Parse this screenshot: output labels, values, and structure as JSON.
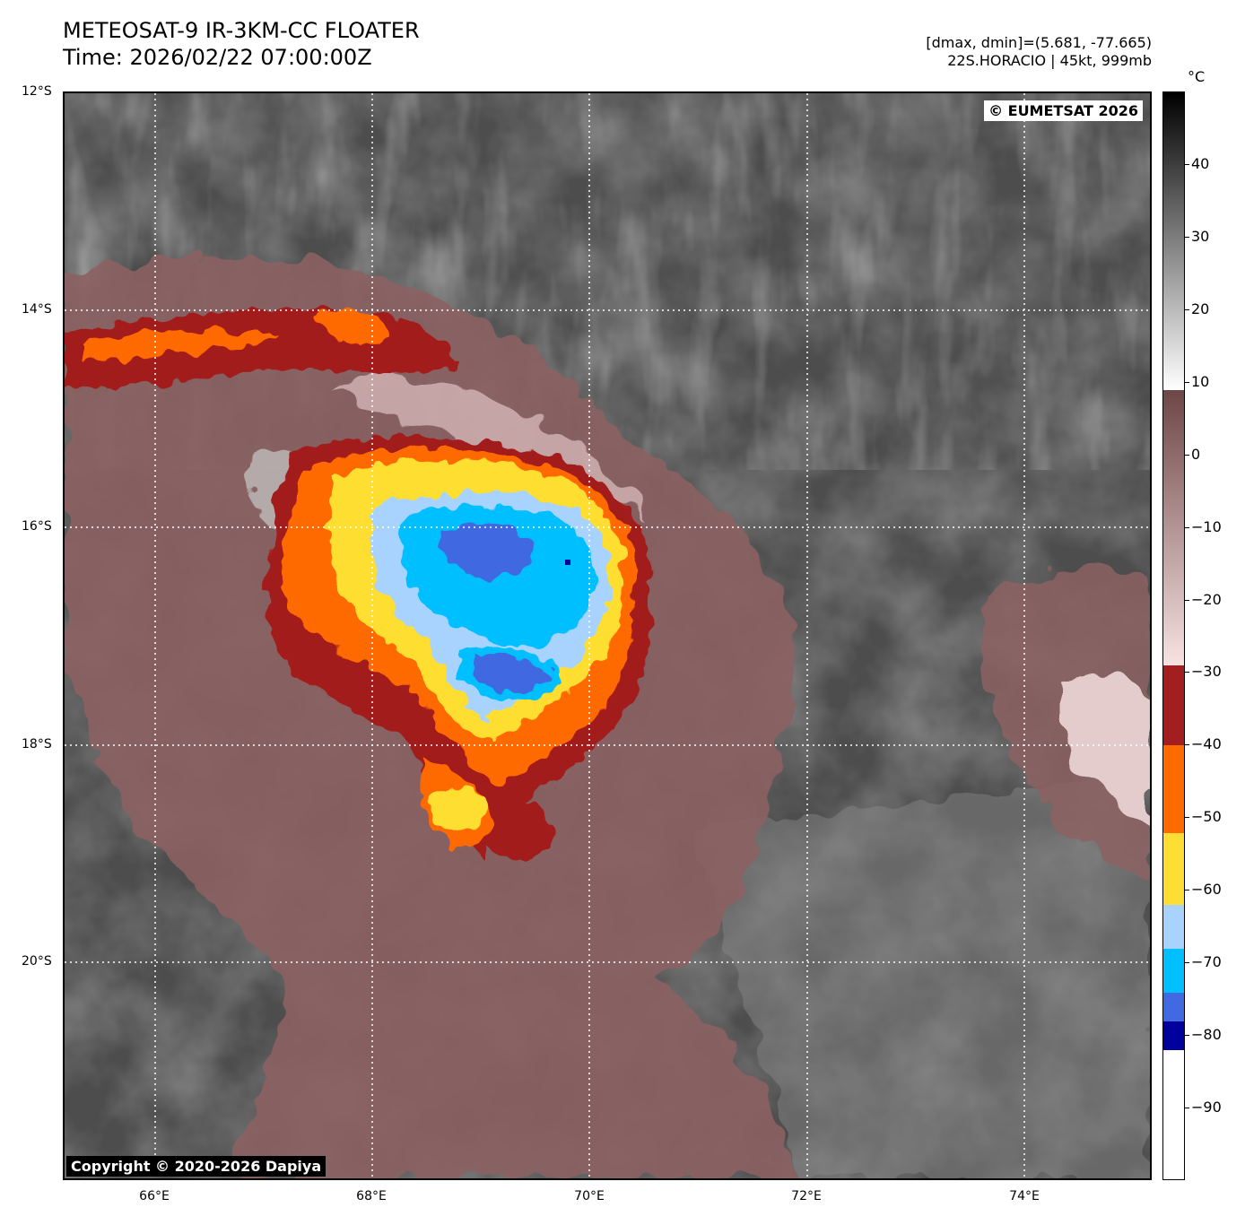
{
  "header": {
    "title_line1": "METEOSAT-9 IR-3KM-CC FLOATER",
    "title_line2": "Time: 2026/02/22 07:00:00Z",
    "info_line1": "[dmax, dmin]=(5.681, -77.665)",
    "info_line2": "22S.HORACIO | 45kt, 999mb"
  },
  "map": {
    "credit_eumetsat": "© EUMETSAT 2026",
    "credit_copyright": "Copyright © 2020-2026 Dapiya",
    "lat_range": [
      -22,
      -12
    ],
    "lon_range": [
      65.17,
      75.17
    ],
    "lat_labels": [
      {
        "value": -12,
        "label": "12°S"
      },
      {
        "value": -14,
        "label": "14°S"
      },
      {
        "value": -16,
        "label": "16°S"
      },
      {
        "value": -18,
        "label": "18°S"
      },
      {
        "value": -20,
        "label": "20°S"
      }
    ],
    "lon_labels": [
      {
        "value": 66,
        "label": "66°E"
      },
      {
        "value": 68,
        "label": "68°E"
      },
      {
        "value": 70,
        "label": "70°E"
      },
      {
        "value": 72,
        "label": "72°E"
      },
      {
        "value": 74,
        "label": "74°E"
      }
    ],
    "gridlines": "dotted-white",
    "storm_center": {
      "lon": 69.7,
      "lat": -16.3
    }
  },
  "colorbar": {
    "unit": "°C",
    "range": [
      -100,
      50
    ],
    "ticks": [
      {
        "value": 40,
        "label": "40"
      },
      {
        "value": 30,
        "label": "30"
      },
      {
        "value": 20,
        "label": "20"
      },
      {
        "value": 10,
        "label": "10"
      },
      {
        "value": 0,
        "label": "0"
      },
      {
        "value": -10,
        "label": "−10"
      },
      {
        "value": -20,
        "label": "−20"
      },
      {
        "value": -30,
        "label": "−30"
      },
      {
        "value": -40,
        "label": "−40"
      },
      {
        "value": -50,
        "label": "−50"
      },
      {
        "value": -60,
        "label": "−60"
      },
      {
        "value": -70,
        "label": "−70"
      },
      {
        "value": -80,
        "label": "−80"
      },
      {
        "value": -90,
        "label": "−90"
      }
    ],
    "segments": [
      {
        "from": 9,
        "to": 50,
        "colors": [
          "#ffffff",
          "#000000"
        ]
      },
      {
        "from": -29,
        "to": 9,
        "colors": [
          "#f7e2e2",
          "#6e4646"
        ]
      },
      {
        "from": -40,
        "to": -29,
        "colors": [
          "#a31f1f",
          "#a31f1f"
        ]
      },
      {
        "from": -52,
        "to": -40,
        "colors": [
          "#ff6a00",
          "#ff6a00"
        ]
      },
      {
        "from": -62,
        "to": -52,
        "colors": [
          "#ffde33",
          "#ffde33"
        ]
      },
      {
        "from": -68,
        "to": -62,
        "colors": [
          "#a8d3ff",
          "#a8d3ff"
        ]
      },
      {
        "from": -74,
        "to": -68,
        "colors": [
          "#00bfff",
          "#00bfff"
        ]
      },
      {
        "from": -78,
        "to": -74,
        "colors": [
          "#4169e1",
          "#4169e1"
        ]
      },
      {
        "from": -82,
        "to": -78,
        "colors": [
          "#00009c",
          "#00009c"
        ]
      },
      {
        "from": -100,
        "to": -82,
        "colors": [
          "#ffffff",
          "#ffffff"
        ]
      }
    ]
  }
}
